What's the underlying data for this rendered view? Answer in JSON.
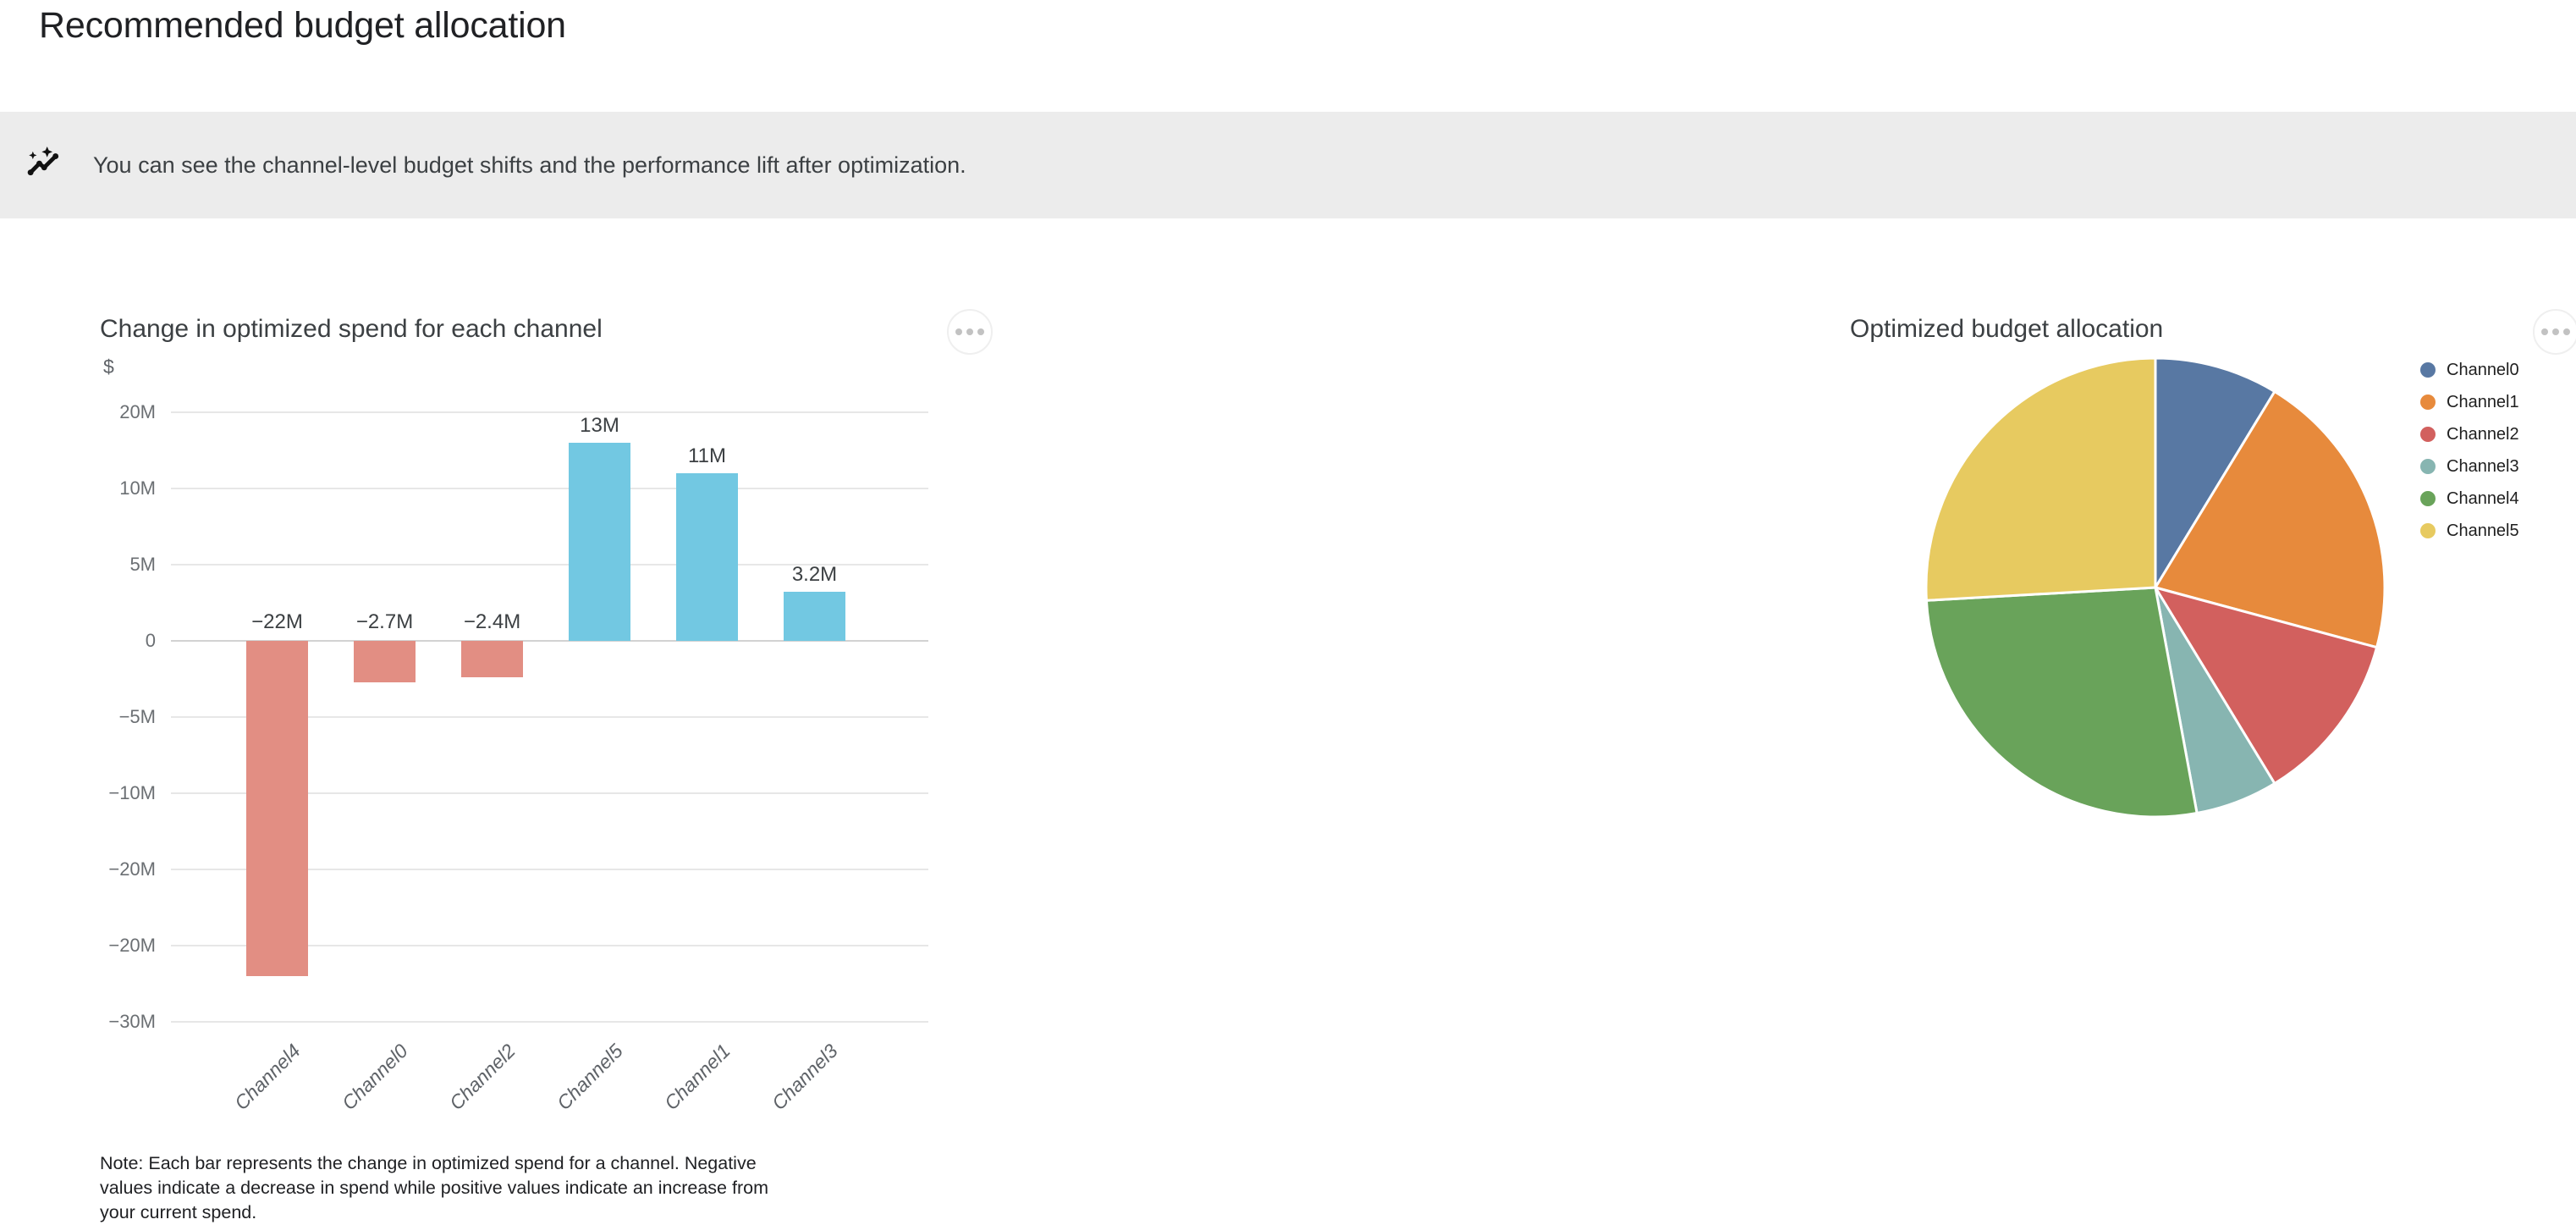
{
  "page": {
    "title": "Recommended budget allocation"
  },
  "banner": {
    "icon": "auto-graph-icon",
    "text": "You can see the channel-level budget shifts and the performance lift after optimization."
  },
  "icons": {
    "banner": "auto-graph-icon",
    "card_menu": "more-options-icon"
  },
  "colors": {
    "banner_bg": "#ececec",
    "negative_bar": "#e28e83",
    "positive_bar": "#72c8e2",
    "gridline": "#e7e7e7",
    "zero_line": "#d2d2d2"
  },
  "chart_data": [
    {
      "type": "bar",
      "title": "Change in optimized spend for each channel",
      "unit_label": "$",
      "categories": [
        "Channel4",
        "Channel0",
        "Channel2",
        "Channel5",
        "Channel1",
        "Channel3"
      ],
      "values_millions": [
        -22,
        -2.7,
        -2.4,
        13,
        11,
        3.2
      ],
      "value_labels": [
        "−22M",
        "−2.7M",
        "−2.4M",
        "13M",
        "11M",
        "3.2M"
      ],
      "y_tick_labels": [
        "20M",
        "10M",
        "5M",
        "0",
        "−5M",
        "−10M",
        "−20M",
        "−20M",
        "−30M"
      ],
      "grid": true,
      "legend_position": "none",
      "negative_color": "#e28e83",
      "positive_color": "#72c8e2",
      "note": "Note: Each bar represents the change in optimized spend for a channel. Negative values indicate a decrease in spend while positive values indicate an increase from your current spend."
    },
    {
      "type": "pie",
      "title": "Optimized budget allocation",
      "legend_position": "right",
      "slices": [
        {
          "label": "Channel0",
          "percent": 8.7,
          "color": "#5878a3"
        },
        {
          "label": "Channel1",
          "percent": 20.5,
          "color": "#e78a3c"
        },
        {
          "label": "Channel2",
          "percent": 12.1,
          "color": "#d2605e"
        },
        {
          "label": "Channel3",
          "percent": 5.8,
          "color": "#87b5b1"
        },
        {
          "label": "Channel4",
          "percent": 27.0,
          "color": "#69a35a"
        },
        {
          "label": "Channel5",
          "percent": 25.9,
          "color": "#e7ca60"
        }
      ]
    }
  ]
}
